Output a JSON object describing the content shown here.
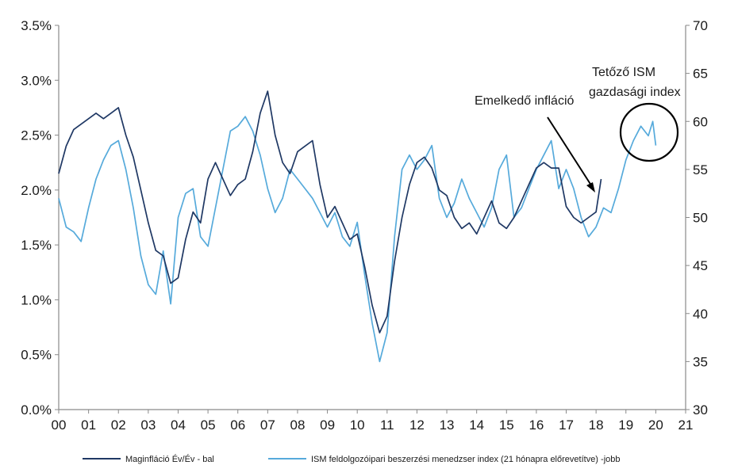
{
  "chart_data": {
    "type": "line",
    "x_tick_labels": [
      "00",
      "01",
      "02",
      "03",
      "04",
      "05",
      "06",
      "07",
      "08",
      "09",
      "10",
      "11",
      "12",
      "13",
      "14",
      "15",
      "16",
      "17",
      "18",
      "19",
      "20",
      "21"
    ],
    "xlim": [
      2000,
      2021
    ],
    "y_left": {
      "ylim": [
        0,
        3.5
      ],
      "ticks": [
        0,
        0.5,
        1,
        1.5,
        2,
        2.5,
        3,
        3.5
      ],
      "tick_labels": [
        "0.0%",
        "0.5%",
        "1.0%",
        "1.5%",
        "2.0%",
        "2.5%",
        "3.0%",
        "3.5%"
      ]
    },
    "y_right": {
      "ylim": [
        30,
        70
      ],
      "ticks": [
        30,
        35,
        40,
        45,
        50,
        55,
        60,
        65,
        70
      ],
      "tick_labels": [
        "30",
        "35",
        "40",
        "45",
        "50",
        "55",
        "60",
        "65",
        "70"
      ]
    },
    "annotations": [
      {
        "text": "Emelkedő infláció",
        "points_to": [
          2017.9,
          1.98
        ]
      },
      {
        "lines": [
          "Tetőző ISM",
          "gazdasági index"
        ],
        "circled_x_range": [
          2019.4,
          2020.2
        ]
      }
    ],
    "series": [
      {
        "name": "Maginfláció Év/Év - bal",
        "axis": "left",
        "color": "#1f3864",
        "x": [
          2000.0,
          2000.25,
          2000.5,
          2000.75,
          2001.0,
          2001.25,
          2001.5,
          2001.75,
          2002.0,
          2002.25,
          2002.5,
          2002.75,
          2003.0,
          2003.25,
          2003.5,
          2003.75,
          2004.0,
          2004.25,
          2004.5,
          2004.75,
          2005.0,
          2005.25,
          2005.5,
          2005.75,
          2006.0,
          2006.25,
          2006.5,
          2006.75,
          2007.0,
          2007.25,
          2007.5,
          2007.75,
          2008.0,
          2008.25,
          2008.5,
          2008.75,
          2009.0,
          2009.25,
          2009.5,
          2009.75,
          2010.0,
          2010.25,
          2010.5,
          2010.75,
          2011.0,
          2011.25,
          2011.5,
          2011.75,
          2012.0,
          2012.25,
          2012.5,
          2012.75,
          2013.0,
          2013.25,
          2013.5,
          2013.75,
          2014.0,
          2014.25,
          2014.5,
          2014.75,
          2015.0,
          2015.25,
          2015.5,
          2015.75,
          2016.0,
          2016.25,
          2016.5,
          2016.75,
          2017.0,
          2017.25,
          2017.5,
          2017.75,
          2018.0,
          2018.17
        ],
        "values": [
          2.15,
          2.4,
          2.55,
          2.6,
          2.65,
          2.7,
          2.65,
          2.7,
          2.75,
          2.5,
          2.3,
          2.0,
          1.7,
          1.45,
          1.4,
          1.15,
          1.2,
          1.55,
          1.8,
          1.7,
          2.1,
          2.25,
          2.1,
          1.95,
          2.05,
          2.1,
          2.35,
          2.7,
          2.9,
          2.5,
          2.25,
          2.15,
          2.35,
          2.4,
          2.45,
          2.05,
          1.75,
          1.85,
          1.7,
          1.55,
          1.6,
          1.3,
          0.95,
          0.7,
          0.85,
          1.35,
          1.75,
          2.05,
          2.25,
          2.3,
          2.2,
          2.0,
          1.95,
          1.75,
          1.65,
          1.7,
          1.6,
          1.75,
          1.9,
          1.7,
          1.65,
          1.75,
          1.9,
          2.05,
          2.2,
          2.25,
          2.2,
          2.2,
          1.85,
          1.75,
          1.7,
          1.75,
          1.8,
          2.1
        ]
      },
      {
        "name": "ISM feldolgozóipari beszerzési menedzser index (21 hónapra előrevetítve) -jobb",
        "axis": "right",
        "color": "#56aadb",
        "x": [
          2000.0,
          2000.25,
          2000.5,
          2000.75,
          2001.0,
          2001.25,
          2001.5,
          2001.75,
          2002.0,
          2002.25,
          2002.5,
          2002.75,
          2003.0,
          2003.25,
          2003.5,
          2003.75,
          2004.0,
          2004.25,
          2004.5,
          2004.75,
          2005.0,
          2005.25,
          2005.5,
          2005.75,
          2006.0,
          2006.25,
          2006.5,
          2006.75,
          2007.0,
          2007.25,
          2007.5,
          2007.75,
          2008.0,
          2008.25,
          2008.5,
          2008.75,
          2009.0,
          2009.25,
          2009.5,
          2009.75,
          2010.0,
          2010.25,
          2010.5,
          2010.75,
          2011.0,
          2011.25,
          2011.5,
          2011.75,
          2012.0,
          2012.25,
          2012.5,
          2012.75,
          2013.0,
          2013.25,
          2013.5,
          2013.75,
          2014.0,
          2014.25,
          2014.5,
          2014.75,
          2015.0,
          2015.25,
          2015.5,
          2015.75,
          2016.0,
          2016.25,
          2016.5,
          2016.75,
          2017.0,
          2017.25,
          2017.5,
          2017.75,
          2018.0,
          2018.25,
          2018.5,
          2018.75,
          2019.0,
          2019.25,
          2019.5,
          2019.75,
          2019.9,
          2020.0
        ],
        "values": [
          52,
          49,
          48.5,
          47.5,
          51,
          54,
          56,
          57.5,
          58,
          55,
          51,
          46,
          43,
          42,
          46.5,
          41,
          50,
          52.5,
          53,
          48,
          47,
          51,
          55,
          59,
          59.5,
          60.5,
          59,
          56.5,
          53,
          50.5,
          52,
          55,
          54,
          53,
          52,
          50.5,
          49,
          50.5,
          48,
          47,
          49.5,
          44,
          39,
          35,
          38,
          48,
          55,
          56.5,
          55,
          56,
          57.5,
          52,
          50,
          51.5,
          54,
          52,
          50.5,
          49,
          51,
          55,
          56.5,
          50,
          51,
          53,
          55,
          56.5,
          58,
          53,
          55,
          53,
          50,
          48,
          49,
          51,
          50.5,
          53,
          56,
          58,
          59.5,
          58.5,
          60,
          57.5
        ]
      }
    ]
  },
  "legend": {
    "items": [
      {
        "label": "Maginfláció Év/Év - bal",
        "color": "#1f3864"
      },
      {
        "label": "ISM feldolgozóipari beszerzési menedzser index (21 hónapra előrevetítve) -jobb",
        "color": "#56aadb"
      }
    ]
  }
}
